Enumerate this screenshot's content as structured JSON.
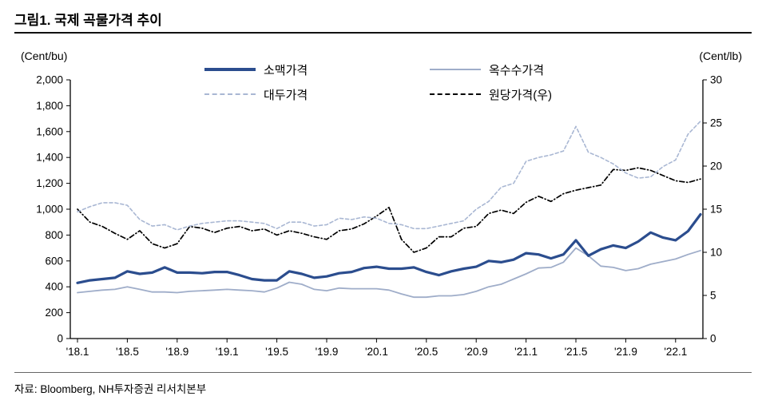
{
  "page": {
    "title": "그림1. 국제 곡물가격 추이",
    "source": "자료: Bloomberg, NH투자증권 리서치본부"
  },
  "legend": {
    "items": [
      {
        "label": "소맥가격"
      },
      {
        "label": "옥수수가격"
      },
      {
        "label": "대두가격"
      },
      {
        "label": "원당가격(우)"
      }
    ]
  },
  "chart_data": {
    "type": "line",
    "title": "그림1. 국제 곡물가격 추이",
    "x_labels": [
      "'18.1",
      "'18.5",
      "'18.9",
      "'19.1",
      "'19.5",
      "'19.9",
      "'20.1",
      "'20.5",
      "'20.9",
      "'21.1",
      "'21.5",
      "'21.9",
      "'22.1"
    ],
    "x_tick_indices": [
      0,
      4,
      8,
      12,
      16,
      20,
      24,
      28,
      32,
      36,
      40,
      44,
      48
    ],
    "n_points": 51,
    "x_note": "monthly points from 2018.1 to 2022.3",
    "left_axis": {
      "unit": "(Cent/bu)",
      "range": [
        0,
        2000
      ],
      "tick_labels": [
        "0",
        "200",
        "400",
        "600",
        "800",
        "1,000",
        "1,200",
        "1,400",
        "1,600",
        "1,800",
        "2,000"
      ]
    },
    "right_axis": {
      "unit": "(Cent/lb)",
      "range": [
        0,
        30
      ],
      "tick_labels": [
        "0",
        "5",
        "10",
        "15",
        "20",
        "25",
        "30"
      ]
    },
    "grid": false,
    "legend_position": "top-center",
    "series": [
      {
        "key": "wheat",
        "name": "소맥가격",
        "axis": "left",
        "color": "#2b4d8e",
        "width": 3.2,
        "dash": null,
        "values": [
          430,
          450,
          460,
          470,
          520,
          500,
          510,
          550,
          510,
          510,
          505,
          515,
          515,
          490,
          460,
          450,
          450,
          520,
          500,
          470,
          480,
          505,
          515,
          545,
          555,
          540,
          540,
          550,
          515,
          490,
          520,
          540,
          555,
          600,
          590,
          610,
          660,
          650,
          620,
          650,
          760,
          640,
          690,
          720,
          700,
          750,
          820,
          780,
          760,
          830,
          960
        ]
      },
      {
        "key": "corn",
        "name": "옥수수가격",
        "axis": "left",
        "color": "#9fadc9",
        "width": 1.8,
        "dash": null,
        "values": [
          355,
          365,
          375,
          380,
          400,
          380,
          360,
          360,
          355,
          365,
          370,
          375,
          380,
          375,
          370,
          360,
          390,
          435,
          420,
          380,
          370,
          390,
          385,
          385,
          385,
          375,
          345,
          320,
          320,
          330,
          330,
          340,
          365,
          400,
          420,
          460,
          500,
          545,
          550,
          590,
          700,
          640,
          560,
          550,
          525,
          540,
          575,
          595,
          615,
          650,
          680
        ]
      },
      {
        "key": "soybean",
        "name": "대두가격",
        "axis": "left",
        "color": "#a9b7d3",
        "width": 1.6,
        "dash": "4 3",
        "values": [
          980,
          1020,
          1050,
          1050,
          1030,
          920,
          870,
          880,
          840,
          870,
          890,
          900,
          910,
          910,
          900,
          890,
          850,
          900,
          900,
          870,
          880,
          930,
          920,
          940,
          930,
          890,
          880,
          850,
          850,
          870,
          890,
          910,
          1000,
          1060,
          1170,
          1200,
          1370,
          1400,
          1420,
          1450,
          1640,
          1440,
          1400,
          1350,
          1280,
          1240,
          1250,
          1330,
          1380,
          1580,
          1680
        ]
      },
      {
        "key": "sugar",
        "name": "원당가격(우)",
        "axis": "right",
        "color": "#000000",
        "width": 1.7,
        "dash": "6 3 1 3",
        "values": [
          15.0,
          13.5,
          13.0,
          12.2,
          11.5,
          12.5,
          11.0,
          10.5,
          11.0,
          13.0,
          12.8,
          12.3,
          12.8,
          13.0,
          12.5,
          12.7,
          12.0,
          12.5,
          12.2,
          11.8,
          11.5,
          12.5,
          12.7,
          13.3,
          14.2,
          15.2,
          11.5,
          10.0,
          10.5,
          11.8,
          11.8,
          12.8,
          13.0,
          14.5,
          14.9,
          14.5,
          15.8,
          16.5,
          15.9,
          16.8,
          17.2,
          17.5,
          17.8,
          19.6,
          19.5,
          19.8,
          19.5,
          18.9,
          18.3,
          18.1,
          18.5
        ]
      }
    ]
  }
}
